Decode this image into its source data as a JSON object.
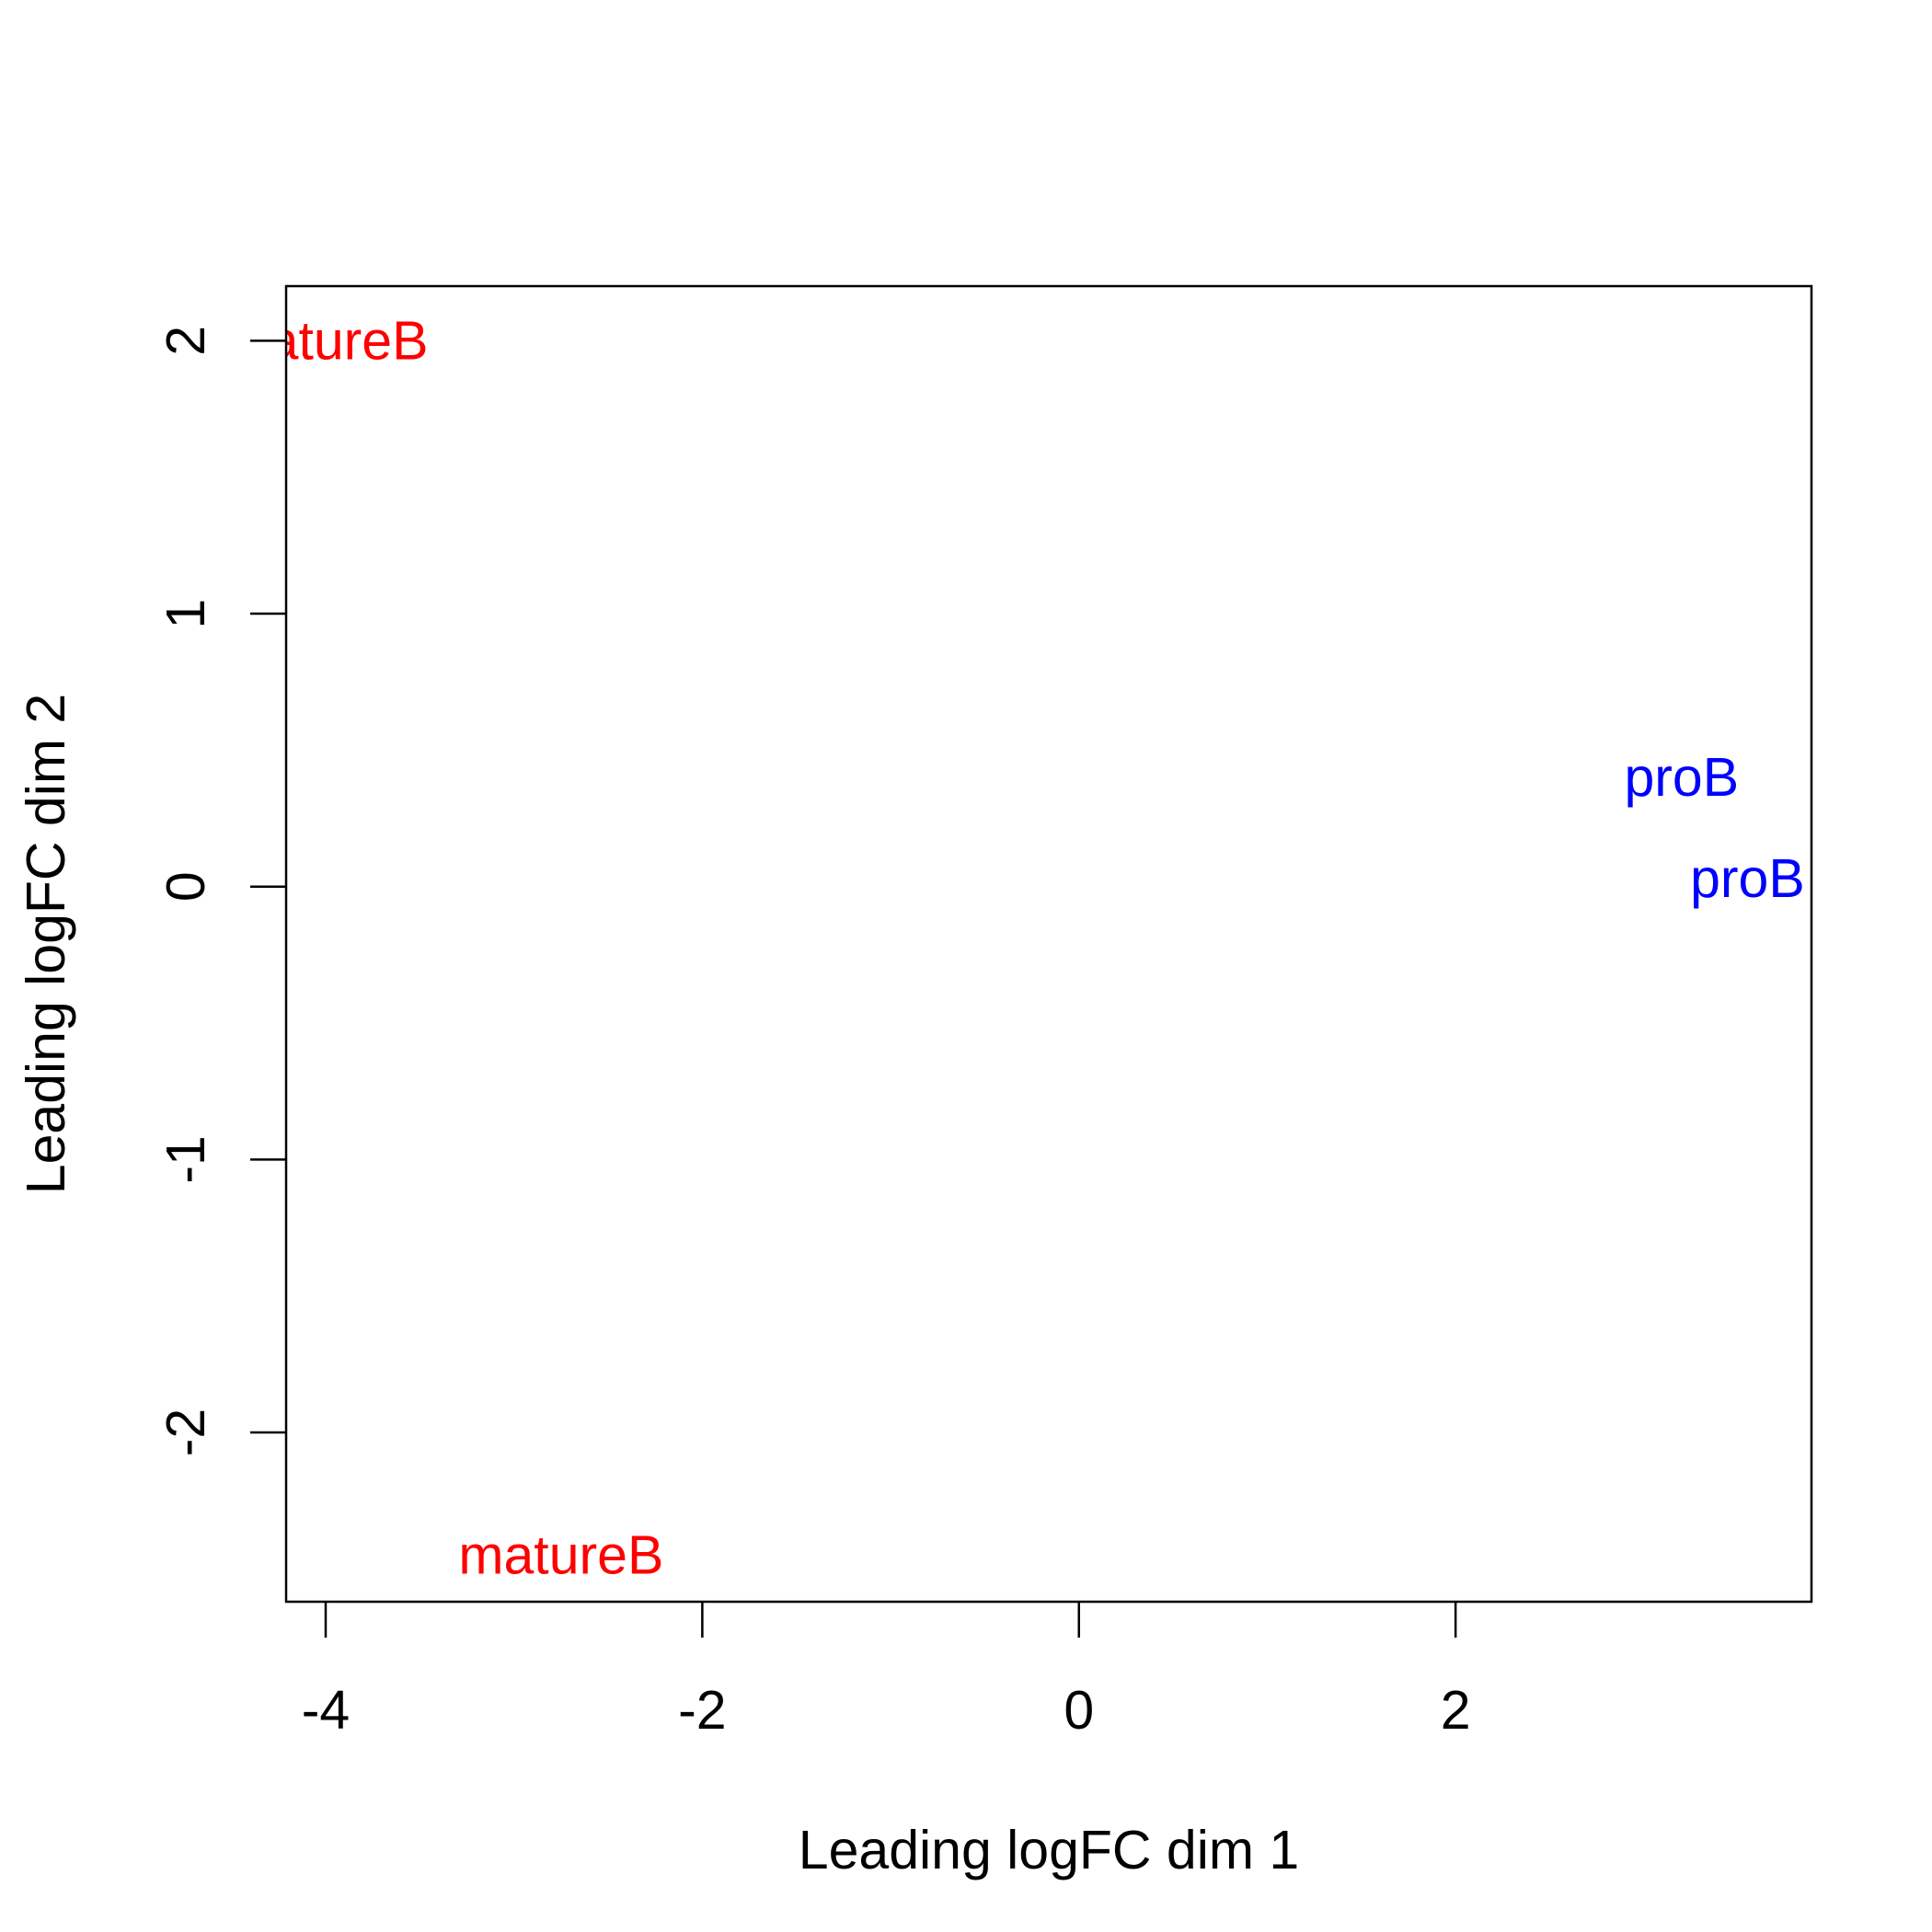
{
  "chart_data": {
    "type": "scatter",
    "title": "",
    "xlabel": "Leading logFC dim 1",
    "ylabel": "Leading logFC dim 2",
    "xlim": [
      -4.21,
      3.89
    ],
    "ylim": [
      -2.62,
      2.2
    ],
    "xticks": [
      -4,
      -2,
      0,
      2
    ],
    "yticks": [
      -2,
      -1,
      0,
      1,
      2
    ],
    "x_tick_labels": [
      "-4",
      "-2",
      "0",
      "2"
    ],
    "y_tick_labels": [
      "-2",
      "-1",
      "0",
      "1",
      "2"
    ],
    "grid": false,
    "points": [
      {
        "label": "matureB",
        "x": -4.0,
        "y": 2.0,
        "color": "#ff0000"
      },
      {
        "label": "matureB",
        "x": -2.75,
        "y": -2.45,
        "color": "#ff0000"
      },
      {
        "label": "proB",
        "x": 3.2,
        "y": 0.4,
        "color": "#0000ff"
      },
      {
        "label": "proB",
        "x": 3.55,
        "y": 0.03,
        "color": "#0000ff"
      }
    ]
  }
}
